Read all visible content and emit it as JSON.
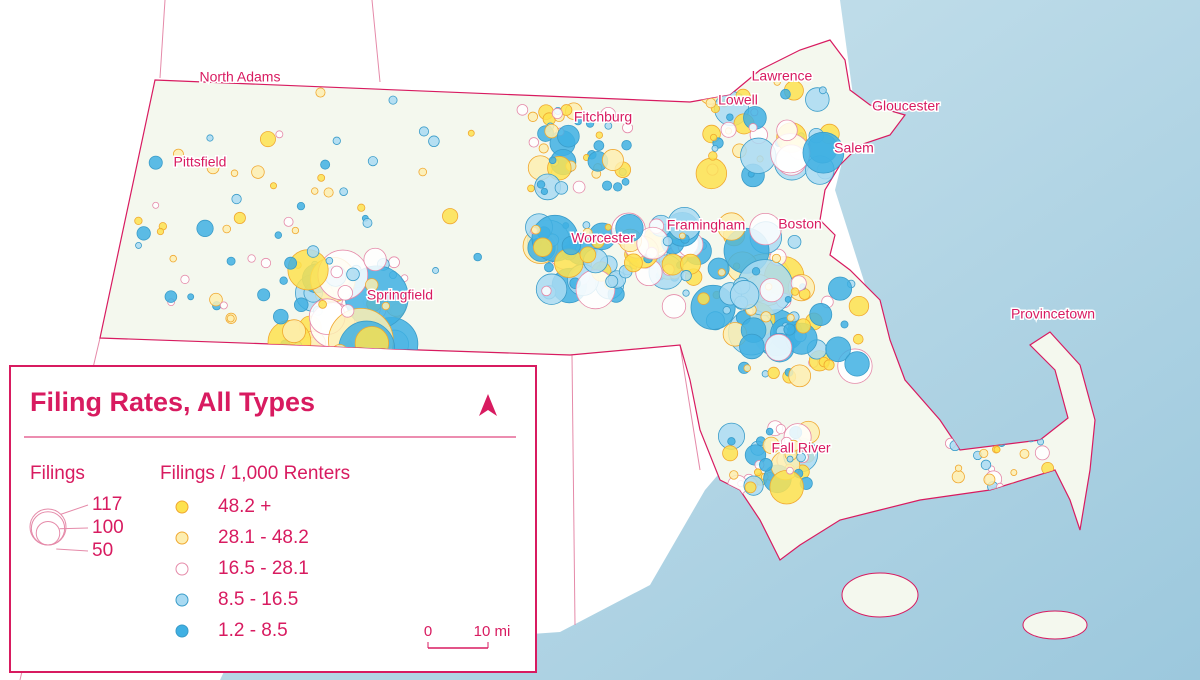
{
  "map": {
    "cities": [
      "North Adams",
      "Pittsfield",
      "Springfield",
      "Worcester",
      "Fitchburg",
      "Framingham",
      "Boston",
      "Lowell",
      "Lawrence",
      "Gloucester",
      "Salem",
      "Fall River",
      "Provincetown"
    ],
    "legend": {
      "title": "Filing Rates, All Types",
      "size_heading": "Filings",
      "sizes": [
        117,
        100,
        50
      ],
      "rate_heading": "Filings / 1,000 Renters",
      "classes": [
        {
          "label": "48.2 +",
          "color": "#fde24f"
        },
        {
          "label": "28.1 - 48.2",
          "color": "#fdeeb0"
        },
        {
          "label": "16.5 - 28.1",
          "color": "#ffffff"
        },
        {
          "label": "8.5 - 16.5",
          "color": "#a9daf2"
        },
        {
          "label": "1.2 - 8.5",
          "color": "#3fb0e3"
        }
      ],
      "scale_start": "0",
      "scale_end": "10 mi"
    }
  }
}
